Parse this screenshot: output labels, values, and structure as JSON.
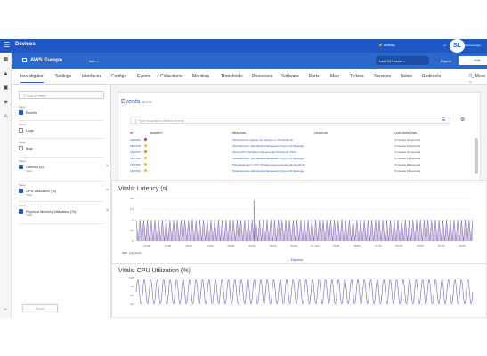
{
  "appbar": {
    "title": "Devices",
    "activity_label": "Activity",
    "logo_text": "ScienceLogic",
    "logo_mark": "SL"
  },
  "device": {
    "name": "AWS Europe",
    "info_label": "Info",
    "time_range": "Last 24 Hours",
    "report_label": "Report",
    "edit_label": "Edit"
  },
  "tabs": [
    "Investigator",
    "Settings",
    "Interfaces",
    "Configs",
    "Events",
    "Collections",
    "Monitors",
    "Thresholds",
    "Processes",
    "Software",
    "Ports",
    "Map",
    "Tickets",
    "Services",
    "Notes",
    "Redirects"
  ],
  "more_label": "More",
  "panels": {
    "search_placeholder": "Add a metric",
    "items": [
      {
        "kind": "Panel",
        "label": "Events",
        "checked": true,
        "sub": "",
        "removable": false
      },
      {
        "kind": "Panel",
        "label": "Logs",
        "checked": false,
        "sub": "",
        "removable": false
      },
      {
        "kind": "Panel",
        "label": "Map",
        "checked": false,
        "sub": "",
        "removable": false
      },
      {
        "kind": "Panel",
        "label": "Latency (s)",
        "checked": true,
        "sub": "Vitals",
        "removable": true
      },
      {
        "kind": "Panel",
        "label": "CPU Utilization (%)",
        "checked": true,
        "sub": "Vitals",
        "removable": true
      },
      {
        "kind": "Panel",
        "label": "Physical Memory Utilization (%)",
        "checked": true,
        "sub": "Vitals",
        "removable": true
      }
    ],
    "reset_label": "Reset"
  },
  "events": {
    "title": "Events",
    "count": "18 of 18",
    "search_placeholder": "Type to search device events",
    "columns": [
      "ID",
      "SEVERITY",
      "MESSAGE",
      "TICKET ID",
      "LAST DETECTED"
    ],
    "rows": [
      {
        "id": "1487490",
        "severity": "Critical",
        "sev_color": "#d9342b",
        "message": "Virtual Device Latency for Latency on Threshold 30...",
        "ticket": "",
        "when": "3 minutes 42 seconds"
      },
      {
        "id": "1487478",
        "severity": "Minor",
        "sev_color": "#e8b634",
        "message": "Virtual Events: Alarmdevicechangeevent-Ssync-20 Message...",
        "ticket": "",
        "when": "3 minutes 21 seconds"
      },
      {
        "id": "1487476",
        "severity": "Major",
        "sev_color": "#e8782a",
        "message": "Virtual CPU Utilization has exceeded Threshold (76%) ...",
        "ticket": "",
        "when": "4 minutes 41 seconds"
      },
      {
        "id": "1487469",
        "severity": "Minor",
        "sev_color": "#e8b634",
        "message": "Virtual Events: Alarmdevicechangeevent-Ssync-20 Message...",
        "ticket": "",
        "when": "4 minutes 14 seconds"
      },
      {
        "id": "1487465",
        "severity": "Minor",
        "sev_color": "#e8b634",
        "message": "Scheduled agent CPU Utilization has exceeded the threshold...",
        "ticket": "",
        "when": "4 minutes 46 seconds"
      },
      {
        "id": "1487463",
        "severity": "Minor",
        "sev_color": "#e8b634",
        "message": "Virtual Events: Alarmdevicechangeevent-Ssync-20 Message...",
        "ticket": "",
        "when": "5 minutes 23 seconds"
      }
    ],
    "expand_label": "Expand"
  },
  "latency": {
    "title": "Vitals: Latency (s)",
    "expand_label": "Expand",
    "legend": "Avg (total)"
  },
  "cpu": {
    "title": "Vitals: CPU Utilization (%)"
  },
  "chart_data": [
    {
      "type": "area",
      "title": "Vitals: Latency (s)",
      "xlabel": "",
      "ylabel": "",
      "x_ticks": [
        "12:00",
        "15:00",
        "18:00",
        "21:00",
        "00:00",
        "03:00",
        "06:00",
        "09:00",
        "12. Nov",
        "15:00",
        "18:00",
        "21:00",
        "00:00",
        "03:00",
        "06:00",
        "09:00"
      ],
      "y_ticks": [
        "0",
        "0.5",
        "1",
        "1.5",
        "2.0"
      ],
      "ylim": [
        0,
        2.0
      ],
      "series": [
        {
          "name": "Avg (total)",
          "color": "#7d63b5",
          "pattern": "dense_oscillation",
          "low": 0,
          "high": 1.0,
          "spike": 1.9
        }
      ]
    },
    {
      "type": "line",
      "title": "Vitals: CPU Utilization (%)",
      "y_ticks": [
        "100",
        "75",
        "50",
        "25"
      ],
      "ylim": [
        0,
        100
      ],
      "series": [
        {
          "name": "",
          "color": "#7d63b5",
          "pattern": "sine_oscillation",
          "low": 25,
          "high": 95,
          "cycles": 52
        }
      ]
    }
  ]
}
